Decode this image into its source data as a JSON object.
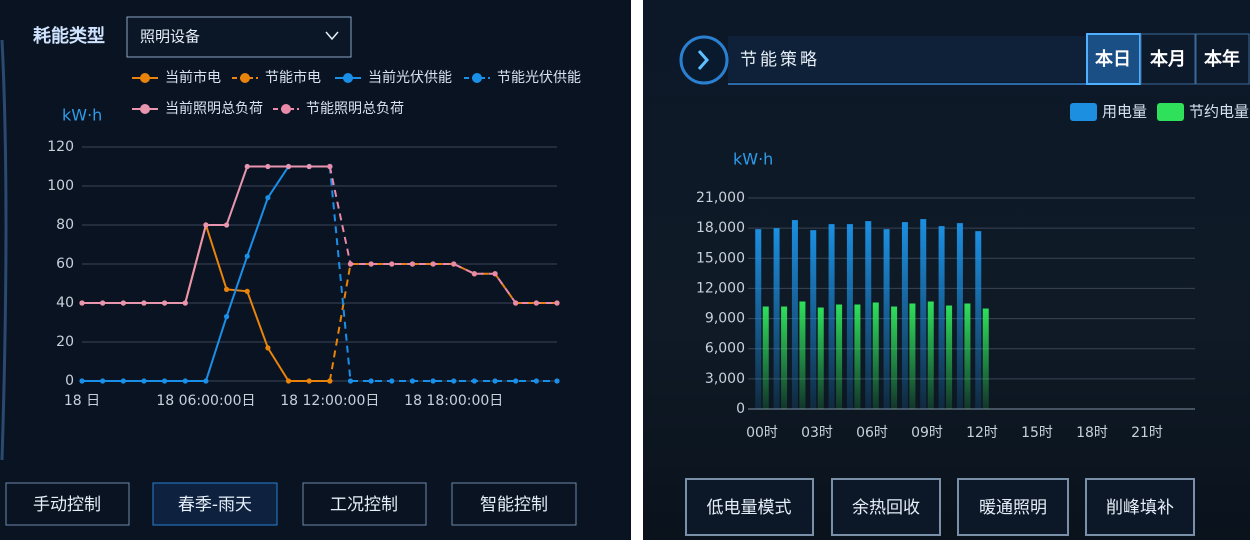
{
  "left_panel": {
    "filter_label": "耗能类型",
    "dropdown": "照明设备",
    "buttons": [
      "手动控制",
      "春季-雨天",
      "工况控制",
      "智能控制"
    ]
  },
  "right_panel": {
    "title": "节能策略",
    "tabs": [
      "本日",
      "本月",
      "本年"
    ],
    "buttons": [
      "低电量模式",
      "余热回收",
      "暖通照明",
      "削峰填补"
    ]
  },
  "chart_data": [
    {
      "type": "line",
      "y_unit": "kW·h",
      "categories": [
        "18 日",
        null,
        null,
        null,
        null,
        null,
        "18  06:00:00日",
        null,
        null,
        null,
        null,
        null,
        "18  12:00:00日",
        null,
        null,
        null,
        null,
        null,
        "18  18:00:00日",
        null,
        null,
        null,
        null,
        null
      ],
      "ylim": [
        0,
        120
      ],
      "yticks": [
        0,
        20,
        40,
        60,
        80,
        100,
        120
      ],
      "grid": true,
      "series": [
        {
          "name": "当前市电",
          "color": "#e8830c",
          "line_style": "solid",
          "values": [
            40,
            40,
            40,
            40,
            40,
            40,
            80,
            47,
            46,
            17,
            0,
            0,
            0,
            null,
            null,
            null,
            null,
            null,
            null,
            null,
            null,
            null,
            null,
            null
          ]
        },
        {
          "name": "节能市电",
          "color": "#e8830c",
          "line_style": "dashed",
          "values": [
            null,
            null,
            null,
            null,
            null,
            null,
            null,
            null,
            null,
            null,
            null,
            null,
            0,
            60,
            60,
            60,
            60,
            60,
            60,
            55,
            55,
            40,
            40,
            40
          ]
        },
        {
          "name": "当前光伏供能",
          "color": "#1a8fe8",
          "line_style": "solid",
          "values": [
            0,
            0,
            0,
            0,
            0,
            0,
            0,
            33,
            64,
            94,
            110,
            110,
            110,
            null,
            null,
            null,
            null,
            null,
            null,
            null,
            null,
            null,
            null,
            null
          ]
        },
        {
          "name": "节能光伏供能",
          "color": "#1a8fe8",
          "line_style": "dashed",
          "values": [
            null,
            null,
            null,
            null,
            null,
            null,
            null,
            null,
            null,
            null,
            null,
            null,
            110,
            0,
            0,
            0,
            0,
            0,
            0,
            0,
            0,
            0,
            0,
            0
          ]
        },
        {
          "name": "当前照明总负荷",
          "color": "#e896b0",
          "line_style": "solid",
          "values": [
            40,
            40,
            40,
            40,
            40,
            40,
            80,
            80,
            110,
            110,
            110,
            110,
            110,
            null,
            null,
            null,
            null,
            null,
            null,
            null,
            null,
            null,
            null,
            null
          ]
        },
        {
          "name": "节能照明总负荷",
          "color": "#e88aa8",
          "line_style": "dashed",
          "values": [
            null,
            null,
            null,
            null,
            null,
            null,
            null,
            null,
            null,
            null,
            null,
            null,
            110,
            60,
            60,
            60,
            60,
            60,
            60,
            55,
            55,
            40,
            40,
            40
          ]
        }
      ]
    },
    {
      "type": "bar",
      "y_unit": "kW·h",
      "categories": [
        "00时",
        null,
        null,
        "03时",
        null,
        null,
        "06时",
        null,
        null,
        "09时",
        null,
        null,
        "12时",
        null,
        null,
        "15时",
        null,
        null,
        "18时",
        null,
        null,
        "21时",
        null,
        null
      ],
      "ylim": [
        0,
        21000
      ],
      "yticks": [
        0,
        {
          "value": 3000,
          "label": "3,000"
        },
        {
          "value": 6000,
          "label": "6,000"
        },
        {
          "value": 9000,
          "label": "9,000"
        },
        {
          "value": 12000,
          "label": "12,000"
        },
        {
          "value": 15000,
          "label": "15,000"
        },
        {
          "value": 18000,
          "label": "18,000"
        },
        {
          "value": 21000,
          "label": "21,000"
        }
      ],
      "grid": true,
      "series": [
        {
          "name": "用电量",
          "color": "#1c8fe0",
          "values": [
            17900,
            18000,
            18800,
            17800,
            18400,
            18400,
            18700,
            17900,
            18600,
            18900,
            18200,
            18500,
            17700,
            null,
            null,
            null,
            null,
            null,
            null,
            null,
            null,
            null,
            null,
            null
          ]
        },
        {
          "name": "节约电量",
          "color": "#2ee05a",
          "values": [
            10200,
            10200,
            10700,
            10100,
            10400,
            10400,
            10600,
            10200,
            10500,
            10700,
            10300,
            10500,
            10000,
            null,
            null,
            null,
            null,
            null,
            null,
            null,
            null,
            null,
            null,
            null
          ]
        }
      ]
    }
  ]
}
